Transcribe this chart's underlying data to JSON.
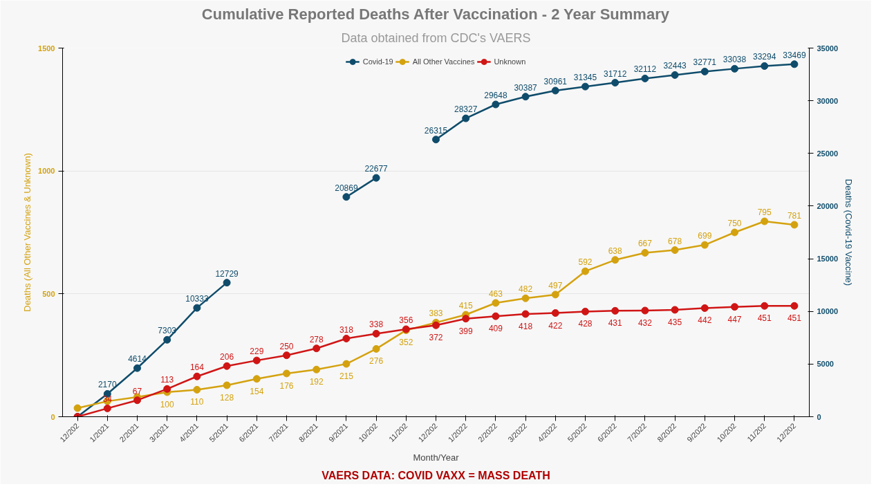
{
  "chart_data": {
    "type": "line",
    "title": "Cumulative Reported Deaths After Vaccination - 2 Year Summary",
    "subtitle": "Data obtained from CDC's VAERS",
    "xlabel": "Month/Year",
    "ylabel": "Deaths (All Other Vaccines & Unknown)",
    "y2label": "Deaths (Covid-19 Vaccine)",
    "categories": [
      "12/202",
      "1/2021",
      "2/2021",
      "3/2021",
      "4/2021",
      "5/2021",
      "6/2021",
      "7/2021",
      "8/2021",
      "9/2021",
      "10/202",
      "11/202",
      "12/202",
      "1/2022",
      "2/2022",
      "3/2022",
      "4/2022",
      "5/2022",
      "6/2022",
      "7/2022",
      "8/2022",
      "9/2022",
      "10/202",
      "11/202",
      "12/202"
    ],
    "series": [
      {
        "name": "Covid-19",
        "color": "#0f4c6b",
        "axis": "y2",
        "values": [
          0,
          2170,
          4614,
          7303,
          10333,
          12729,
          null,
          null,
          null,
          20869,
          22677,
          null,
          26315,
          28327,
          29648,
          30387,
          30961,
          31345,
          31712,
          32112,
          32443,
          32771,
          33038,
          33294,
          33469
        ],
        "value_labels": [
          null,
          "2170",
          "4614",
          "7303",
          "10333",
          "12729",
          null,
          null,
          null,
          "20869",
          "22677",
          null,
          "26315",
          "28327",
          "29648",
          "30387",
          "30961",
          "31345",
          "31712",
          "32112",
          "32443",
          "32771",
          "33038",
          "33294",
          "33469"
        ]
      },
      {
        "name": "All Other Vaccines",
        "color": "#d4a20f",
        "values": [
          35,
          63,
          80,
          100,
          110,
          128,
          154,
          176,
          192,
          215,
          276,
          352,
          383,
          415,
          463,
          482,
          497,
          592,
          638,
          667,
          678,
          699,
          750,
          795,
          781
        ],
        "value_labels": [
          null,
          null,
          null,
          "100",
          "110",
          "128",
          "154",
          "176",
          "192",
          "215",
          "276",
          "352",
          "383",
          "415",
          "463",
          "482",
          "497",
          "592",
          "638",
          "667",
          "678",
          "699",
          "750",
          "795",
          "781"
        ]
      },
      {
        "name": "Unknown",
        "color": "#d01515",
        "values": [
          0,
          34,
          67,
          113,
          164,
          206,
          229,
          250,
          278,
          318,
          338,
          356,
          372,
          399,
          409,
          418,
          422,
          428,
          431,
          432,
          435,
          442,
          447,
          451,
          451
        ],
        "value_labels": [
          null,
          "34",
          "67",
          "113",
          "164",
          "206",
          "229",
          "250",
          "278",
          "318",
          "338",
          "356",
          "372",
          "399",
          "409",
          "418",
          "422",
          "428",
          "431",
          "432",
          "435",
          "442",
          "447",
          "451",
          "451"
        ]
      }
    ],
    "ylim": [
      0,
      1500
    ],
    "yticks": [
      0,
      500,
      1000,
      1500
    ],
    "y2lim": [
      0,
      35000
    ],
    "y2ticks": [
      0,
      5000,
      10000,
      15000,
      20000,
      25000,
      30000,
      35000
    ],
    "grid": "y",
    "legend": "top",
    "marker": "circle",
    "line_style": "solid",
    "annotations": [
      "VAERS DATA: COVID VAXX = MASS DEATH"
    ]
  }
}
